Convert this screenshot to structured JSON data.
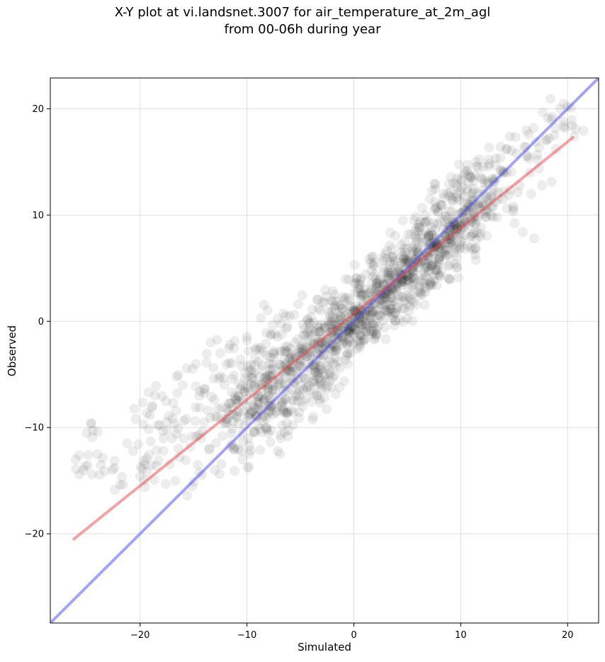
{
  "chart_data": {
    "type": "scatter",
    "title_line1": "X-Y plot at vi.landsnet.3007 for air_temperature_at_2m_agl",
    "title_line2": "from 00-06h during year",
    "xlabel": "Simulated",
    "ylabel": "Observed",
    "xlim": [
      -28.4,
      22.9
    ],
    "ylim": [
      -28.4,
      22.9
    ],
    "xticks": [
      -20,
      -10,
      0,
      10,
      20
    ],
    "yticks": [
      -20,
      -10,
      0,
      10,
      20
    ],
    "tick_labels": {
      "-20": "−20",
      "-10": "−10",
      "0": "0",
      "10": "10",
      "20": "20"
    },
    "grid": true,
    "point_color": "#000000",
    "point_alpha": 0.07,
    "regression_line": {
      "color": "#e8474e",
      "x": [
        -26.2,
        20.5
      ],
      "y": [
        -20.5,
        17.3
      ]
    },
    "one_to_one_line": {
      "color": "#4a4af0",
      "x": [
        -28.4,
        22.9
      ],
      "y": [
        -28.4,
        22.9
      ]
    },
    "points": [
      [
        -26.0,
        -13.9
      ],
      [
        -25.3,
        -14.0
      ],
      [
        -25.0,
        -10.5
      ],
      [
        -24.6,
        -9.6
      ],
      [
        -24.5,
        -14.4
      ],
      [
        -24.0,
        -12.5
      ],
      [
        -23.3,
        -14.1
      ],
      [
        -22.4,
        -13.8
      ],
      [
        -21.6,
        -15.4
      ],
      [
        -21.2,
        -11.5
      ],
      [
        -20.4,
        -9.2
      ],
      [
        -20.0,
        -14.6
      ],
      [
        -19.8,
        -13.9
      ],
      [
        -19.4,
        -12.9
      ],
      [
        -19.0,
        -11.3
      ],
      [
        -19.2,
        -6.7
      ],
      [
        -18.9,
        -8.1
      ],
      [
        -18.6,
        -7.0
      ],
      [
        -18.5,
        -13.6
      ],
      [
        -18.2,
        -9.8
      ],
      [
        -17.8,
        -12.2
      ],
      [
        -17.6,
        -15.3
      ],
      [
        -17.3,
        -8.9
      ],
      [
        -17.0,
        -11.0
      ],
      [
        -16.9,
        -7.7
      ],
      [
        -16.6,
        -10.6
      ],
      [
        -16.3,
        -12.8
      ],
      [
        -16.0,
        -6.0
      ],
      [
        -15.7,
        -9.2
      ],
      [
        -15.6,
        -16.4
      ],
      [
        -15.3,
        -11.8
      ],
      [
        -15.1,
        -4.5
      ],
      [
        -14.8,
        -8.1
      ],
      [
        -14.6,
        -13.5
      ],
      [
        -14.4,
        -6.6
      ],
      [
        -14.2,
        -10.4
      ],
      [
        -14.0,
        -9.5
      ],
      [
        -13.8,
        -3.9
      ],
      [
        -13.5,
        -12.0
      ],
      [
        -13.3,
        -7.1
      ],
      [
        -13.1,
        -5.4
      ],
      [
        -13.0,
        -14.0
      ],
      [
        -12.8,
        -9.0
      ],
      [
        -12.5,
        -3.0
      ],
      [
        -12.3,
        -10.8
      ],
      [
        -12.1,
        -6.0
      ],
      [
        -11.9,
        -8.2
      ],
      [
        -11.6,
        -2.2
      ],
      [
        -11.4,
        -11.6
      ],
      [
        -11.2,
        -5.1
      ],
      [
        -11.0,
        -7.4
      ],
      [
        -10.8,
        -9.6
      ],
      [
        -10.6,
        -3.6
      ],
      [
        -10.4,
        -13.0
      ],
      [
        -10.2,
        -6.6
      ],
      [
        -10.0,
        -1.8
      ],
      [
        -9.8,
        -8.8
      ],
      [
        -9.6,
        -4.6
      ],
      [
        -9.4,
        -10.4
      ],
      [
        -9.3,
        -6.1
      ],
      [
        -9.1,
        -2.5
      ],
      [
        -8.9,
        -7.8
      ],
      [
        -8.7,
        0.3
      ],
      [
        -8.5,
        -9.4
      ],
      [
        -8.4,
        -5.4
      ],
      [
        -8.2,
        -3.2
      ],
      [
        -8.0,
        -7.0
      ],
      [
        -7.8,
        -11.4
      ],
      [
        -7.6,
        -4.4
      ],
      [
        -7.4,
        -1.2
      ],
      [
        -7.3,
        -8.6
      ],
      [
        -7.1,
        -6.0
      ],
      [
        -6.9,
        -2.8
      ],
      [
        -6.7,
        -9.8
      ],
      [
        -6.6,
        -4.9
      ],
      [
        -6.4,
        -7.3
      ],
      [
        -6.2,
        -0.5
      ],
      [
        -6.0,
        -3.5
      ],
      [
        -5.9,
        -8.4
      ],
      [
        -5.7,
        -5.6
      ],
      [
        -5.5,
        -2.0
      ],
      [
        -5.3,
        -6.8
      ],
      [
        -5.2,
        1.6
      ],
      [
        -5.0,
        -4.2
      ],
      [
        -4.8,
        -8.0
      ],
      [
        -4.6,
        -1.3
      ],
      [
        -4.5,
        -5.4
      ],
      [
        -4.3,
        -3.0
      ],
      [
        -4.1,
        -6.5
      ],
      [
        -4.0,
        0.4
      ],
      [
        -3.8,
        -2.2
      ],
      [
        -3.6,
        -4.8
      ],
      [
        -3.4,
        -7.0
      ],
      [
        -3.3,
        -1.0
      ],
      [
        -3.1,
        -3.6
      ],
      [
        -2.9,
        1.8
      ],
      [
        -2.8,
        -5.2
      ],
      [
        -2.6,
        -2.4
      ],
      [
        -2.4,
        0.0
      ],
      [
        -2.3,
        -3.8
      ],
      [
        -2.1,
        -6.2
      ],
      [
        -1.9,
        -1.4
      ],
      [
        -1.8,
        2.5
      ],
      [
        -1.6,
        -2.8
      ],
      [
        -1.4,
        -0.4
      ],
      [
        -1.3,
        -4.4
      ],
      [
        -1.1,
        1.2
      ],
      [
        -0.9,
        -1.8
      ],
      [
        -0.8,
        0.5
      ],
      [
        -0.6,
        -3.0
      ],
      [
        -0.4,
        2.0
      ],
      [
        -0.3,
        -0.8
      ],
      [
        -0.1,
        -2.2
      ],
      [
        0.1,
        1.0
      ],
      [
        0.2,
        3.6
      ],
      [
        0.4,
        -0.2
      ],
      [
        0.6,
        -1.8
      ],
      [
        0.7,
        2.4
      ],
      [
        0.9,
        0.4
      ],
      [
        1.1,
        4.4
      ],
      [
        1.2,
        -1.0
      ],
      [
        1.4,
        1.6
      ],
      [
        1.6,
        3.0
      ],
      [
        1.7,
        -0.2
      ],
      [
        1.9,
        5.2
      ],
      [
        2.1,
        2.2
      ],
      [
        2.2,
        0.6
      ],
      [
        2.4,
        3.8
      ],
      [
        2.6,
        1.4
      ],
      [
        2.7,
        6.0
      ],
      [
        2.9,
        -0.6
      ],
      [
        3.1,
        2.8
      ],
      [
        3.2,
        4.6
      ],
      [
        3.4,
        1.8
      ],
      [
        3.6,
        6.8
      ],
      [
        3.7,
        3.2
      ],
      [
        3.9,
        0.8
      ],
      [
        4.1,
        5.2
      ],
      [
        4.2,
        2.4
      ],
      [
        4.4,
        7.2
      ],
      [
        4.6,
        3.8
      ],
      [
        4.7,
        1.2
      ],
      [
        4.9,
        5.8
      ],
      [
        5.1,
        8.2
      ],
      [
        5.2,
        4.4
      ],
      [
        5.4,
        2.0
      ],
      [
        5.6,
        6.6
      ],
      [
        5.7,
        3.6
      ],
      [
        5.9,
        8.8
      ],
      [
        6.1,
        5.4
      ],
      [
        6.2,
        2.8
      ],
      [
        6.4,
        7.4
      ],
      [
        6.6,
        4.6
      ],
      [
        6.7,
        10.0
      ],
      [
        6.9,
        6.2
      ],
      [
        7.1,
        3.8
      ],
      [
        7.2,
        8.4
      ],
      [
        7.4,
        5.6
      ],
      [
        7.6,
        11.2
      ],
      [
        7.7,
        7.2
      ],
      [
        7.9,
        4.4
      ],
      [
        8.1,
        9.4
      ],
      [
        8.2,
        6.4
      ],
      [
        8.4,
        12.0
      ],
      [
        8.6,
        8.0
      ],
      [
        8.8,
        5.2
      ],
      [
        8.9,
        10.4
      ],
      [
        9.1,
        7.4
      ],
      [
        9.3,
        13.0
      ],
      [
        9.4,
        9.0
      ],
      [
        9.6,
        6.0
      ],
      [
        9.8,
        11.4
      ],
      [
        9.9,
        8.2
      ],
      [
        10.1,
        12.6
      ],
      [
        10.3,
        9.6
      ],
      [
        10.4,
        6.8
      ],
      [
        10.6,
        14.2
      ],
      [
        10.8,
        10.6
      ],
      [
        10.9,
        8.0
      ],
      [
        11.1,
        12.0
      ],
      [
        11.3,
        9.2
      ],
      [
        11.4,
        15.0
      ],
      [
        11.6,
        11.0
      ],
      [
        11.8,
        13.6
      ],
      [
        11.9,
        8.8
      ],
      [
        12.1,
        12.4
      ],
      [
        12.3,
        10.4
      ],
      [
        12.6,
        14.6
      ],
      [
        12.8,
        11.6
      ],
      [
        13.1,
        13.2
      ],
      [
        13.4,
        9.8
      ],
      [
        13.7,
        15.4
      ],
      [
        14.0,
        12.2
      ],
      [
        14.3,
        14.0
      ],
      [
        14.6,
        17.4
      ],
      [
        14.9,
        10.8
      ],
      [
        15.2,
        15.8
      ],
      [
        15.5,
        12.8
      ],
      [
        15.8,
        8.4
      ],
      [
        16.1,
        16.4
      ],
      [
        16.5,
        14.0
      ],
      [
        16.8,
        18.2
      ],
      [
        17.2,
        15.2
      ],
      [
        17.6,
        12.8
      ],
      [
        18.0,
        17.0
      ],
      [
        18.5,
        19.0
      ],
      [
        18.9,
        16.2
      ],
      [
        19.3,
        20.0
      ],
      [
        19.6,
        18.8
      ],
      [
        20.0,
        20.2
      ],
      [
        20.4,
        18.4
      ],
      [
        20.6,
        17.4
      ],
      [
        -3.0,
        -1.5
      ],
      [
        -2.0,
        -0.8
      ],
      [
        -1.0,
        -0.6
      ],
      [
        0.0,
        0.1
      ],
      [
        1.0,
        0.9
      ],
      [
        2.0,
        1.7
      ],
      [
        3.0,
        2.6
      ],
      [
        4.0,
        3.5
      ],
      [
        5.0,
        4.3
      ],
      [
        6.0,
        5.1
      ],
      [
        7.0,
        6.0
      ],
      [
        8.0,
        6.9
      ],
      [
        9.0,
        7.7
      ],
      [
        10.0,
        8.6
      ],
      [
        11.0,
        9.5
      ],
      [
        -5.0,
        -3.8
      ],
      [
        -6.0,
        -4.6
      ],
      [
        -7.0,
        -5.5
      ],
      [
        -8.0,
        -6.3
      ],
      [
        -9.0,
        -7.2
      ],
      [
        -10.0,
        -8.0
      ],
      [
        -11.0,
        -8.9
      ],
      [
        -12.0,
        -9.6
      ],
      [
        -2.5,
        -2.0
      ],
      [
        -1.5,
        -1.2
      ],
      [
        -0.5,
        -0.3
      ],
      [
        0.5,
        0.6
      ],
      [
        1.5,
        1.3
      ],
      [
        2.5,
        2.0
      ],
      [
        3.5,
        3.1
      ],
      [
        4.5,
        3.9
      ],
      [
        5.5,
        4.9
      ],
      [
        6.5,
        5.7
      ],
      [
        7.5,
        6.4
      ],
      [
        8.5,
        7.3
      ],
      [
        9.5,
        8.1
      ],
      [
        -4.0,
        -2.6
      ],
      [
        -3.5,
        -3.0
      ],
      [
        -1.2,
        0.3
      ],
      [
        0.8,
        -0.4
      ],
      [
        2.8,
        3.5
      ],
      [
        4.8,
        5.5
      ],
      [
        6.8,
        7.6
      ],
      [
        8.8,
        9.6
      ],
      [
        -6.5,
        -3.6
      ],
      [
        -7.5,
        -7.8
      ],
      [
        -8.5,
        -9.0
      ],
      [
        -9.5,
        -5.0
      ]
    ]
  }
}
